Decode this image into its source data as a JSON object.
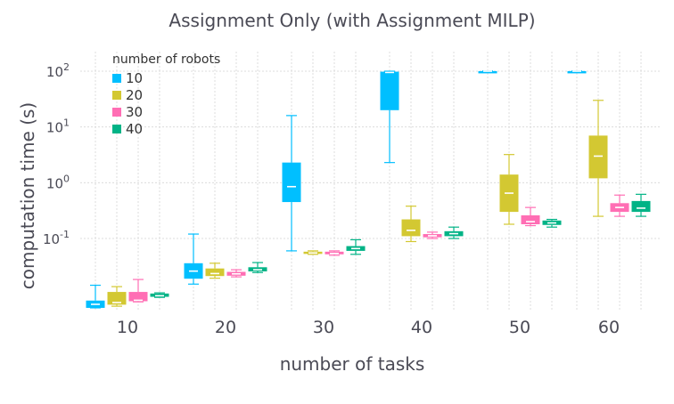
{
  "chart_data": {
    "type": "box",
    "title": "Assignment Only (with Assignment MILP)",
    "xlabel": "number of tasks",
    "ylabel": "computation time (s)",
    "yscale": "log10",
    "ylim": [
      0.004,
      150
    ],
    "grid": true,
    "legend": {
      "title": "number of robots",
      "position": "top-left"
    },
    "categories": [
      "10",
      "20",
      "30",
      "40",
      "50",
      "60"
    ],
    "yticks": [
      {
        "value": 0.1,
        "base": "10",
        "exp": "-1"
      },
      {
        "value": 1,
        "base": "10",
        "exp": "0"
      },
      {
        "value": 10,
        "base": "10",
        "exp": "1"
      },
      {
        "value": 100,
        "base": "10",
        "exp": "2"
      }
    ],
    "series": [
      {
        "name": "10",
        "color": "#00bfff",
        "boxes": [
          {
            "min": 0.0057,
            "q1": 0.0057,
            "median": 0.0066,
            "q3": 0.0077,
            "max": 0.0145
          },
          {
            "min": 0.0152,
            "q1": 0.019,
            "median": 0.026,
            "q3": 0.036,
            "max": 0.12
          },
          {
            "min": 0.06,
            "q1": 0.45,
            "median": 0.85,
            "q3": 2.3,
            "max": 16
          },
          {
            "min": 2.3,
            "q1": 20,
            "median": 95,
            "q3": 98,
            "max": 100
          },
          {
            "min": 99,
            "q1": 99.5,
            "median": 100,
            "q3": 100.3,
            "max": 101
          },
          {
            "min": 99,
            "q1": 99.5,
            "median": 100,
            "q3": 100.3,
            "max": 101
          }
        ]
      },
      {
        "name": "20",
        "color": "#d3c832",
        "boxes": [
          {
            "min": 0.0061,
            "q1": 0.0065,
            "median": 0.0071,
            "q3": 0.011,
            "max": 0.0137
          },
          {
            "min": 0.0194,
            "q1": 0.0212,
            "median": 0.0235,
            "q3": 0.029,
            "max": 0.036
          },
          {
            "min": 0.052,
            "q1": 0.053,
            "median": 0.055,
            "q3": 0.058,
            "max": 0.06
          },
          {
            "min": 0.088,
            "q1": 0.11,
            "median": 0.14,
            "q3": 0.22,
            "max": 0.38
          },
          {
            "min": 0.18,
            "q1": 0.3,
            "median": 0.65,
            "q3": 1.4,
            "max": 3.2
          },
          {
            "min": 0.25,
            "q1": 1.2,
            "median": 3.0,
            "q3": 7.0,
            "max": 30
          }
        ]
      },
      {
        "name": "30",
        "color": "#ff6eb4",
        "boxes": [
          {
            "min": 0.0073,
            "q1": 0.0075,
            "median": 0.0078,
            "q3": 0.011,
            "max": 0.0184
          },
          {
            "min": 0.0205,
            "q1": 0.0215,
            "median": 0.0232,
            "q3": 0.0252,
            "max": 0.0275
          },
          {
            "min": 0.05,
            "q1": 0.052,
            "median": 0.054,
            "q3": 0.058,
            "max": 0.06
          },
          {
            "min": 0.1,
            "q1": 0.105,
            "median": 0.112,
            "q3": 0.12,
            "max": 0.13
          },
          {
            "min": 0.17,
            "q1": 0.18,
            "median": 0.2,
            "q3": 0.26,
            "max": 0.36
          },
          {
            "min": 0.25,
            "q1": 0.3,
            "median": 0.36,
            "q3": 0.43,
            "max": 0.6
          }
        ]
      },
      {
        "name": "40",
        "color": "#00b386",
        "boxes": [
          {
            "min": 0.0088,
            "q1": 0.009,
            "median": 0.0094,
            "q3": 0.0103,
            "max": 0.0106
          },
          {
            "min": 0.0245,
            "q1": 0.0257,
            "median": 0.0275,
            "q3": 0.0305,
            "max": 0.037
          },
          {
            "min": 0.052,
            "q1": 0.06,
            "median": 0.066,
            "q3": 0.073,
            "max": 0.095
          },
          {
            "min": 0.1,
            "q1": 0.11,
            "median": 0.122,
            "q3": 0.135,
            "max": 0.16
          },
          {
            "min": 0.16,
            "q1": 0.175,
            "median": 0.19,
            "q3": 0.21,
            "max": 0.22
          },
          {
            "min": 0.25,
            "q1": 0.3,
            "median": 0.35,
            "q3": 0.47,
            "max": 0.62
          }
        ]
      }
    ]
  }
}
